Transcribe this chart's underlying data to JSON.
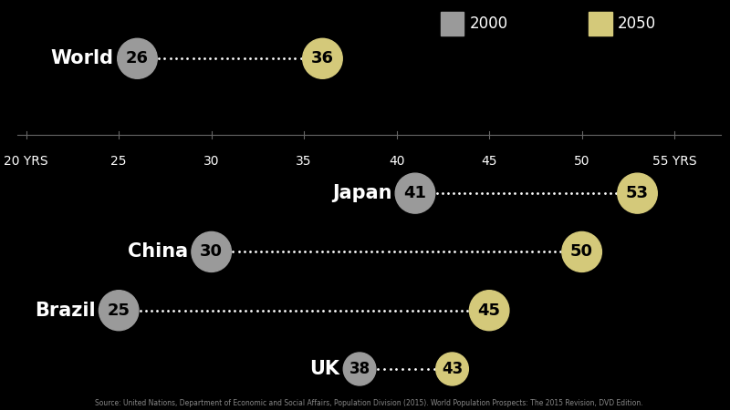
{
  "background_color": "#000000",
  "text_color": "#ffffff",
  "source_text": "Source: United Nations, Department of Economic and Social Affairs, Population Division (2015). World Population Prospects: The 2015 Revision, DVD Edition.",
  "color_2000": "#9a9a9a",
  "color_2050": "#d4c97a",
  "axis_min": 20,
  "axis_max": 57,
  "axis_ticks": [
    20,
    25,
    30,
    35,
    40,
    45,
    50,
    55
  ],
  "axis_tick_labels": [
    "20 YRS",
    "25",
    "30",
    "35",
    "40",
    "45",
    "50",
    "55 YRS"
  ],
  "countries": [
    {
      "name": "World",
      "val_2000": 26,
      "val_2050": 36,
      "row": 0
    },
    {
      "name": "Japan",
      "val_2000": 41,
      "val_2050": 53,
      "row": 2
    },
    {
      "name": "China",
      "val_2000": 30,
      "val_2050": 50,
      "row": 3
    },
    {
      "name": "Brazil",
      "val_2000": 25,
      "val_2050": 45,
      "row": 4
    },
    {
      "name": "UK",
      "val_2000": 38,
      "val_2050": 43,
      "row": 5
    }
  ],
  "country_fontsize": 15,
  "bubble_fontsize": 13,
  "axis_fontsize": 10,
  "legend_fontsize": 12,
  "bubble_size_large": 1800,
  "bubble_size_small": 1200
}
